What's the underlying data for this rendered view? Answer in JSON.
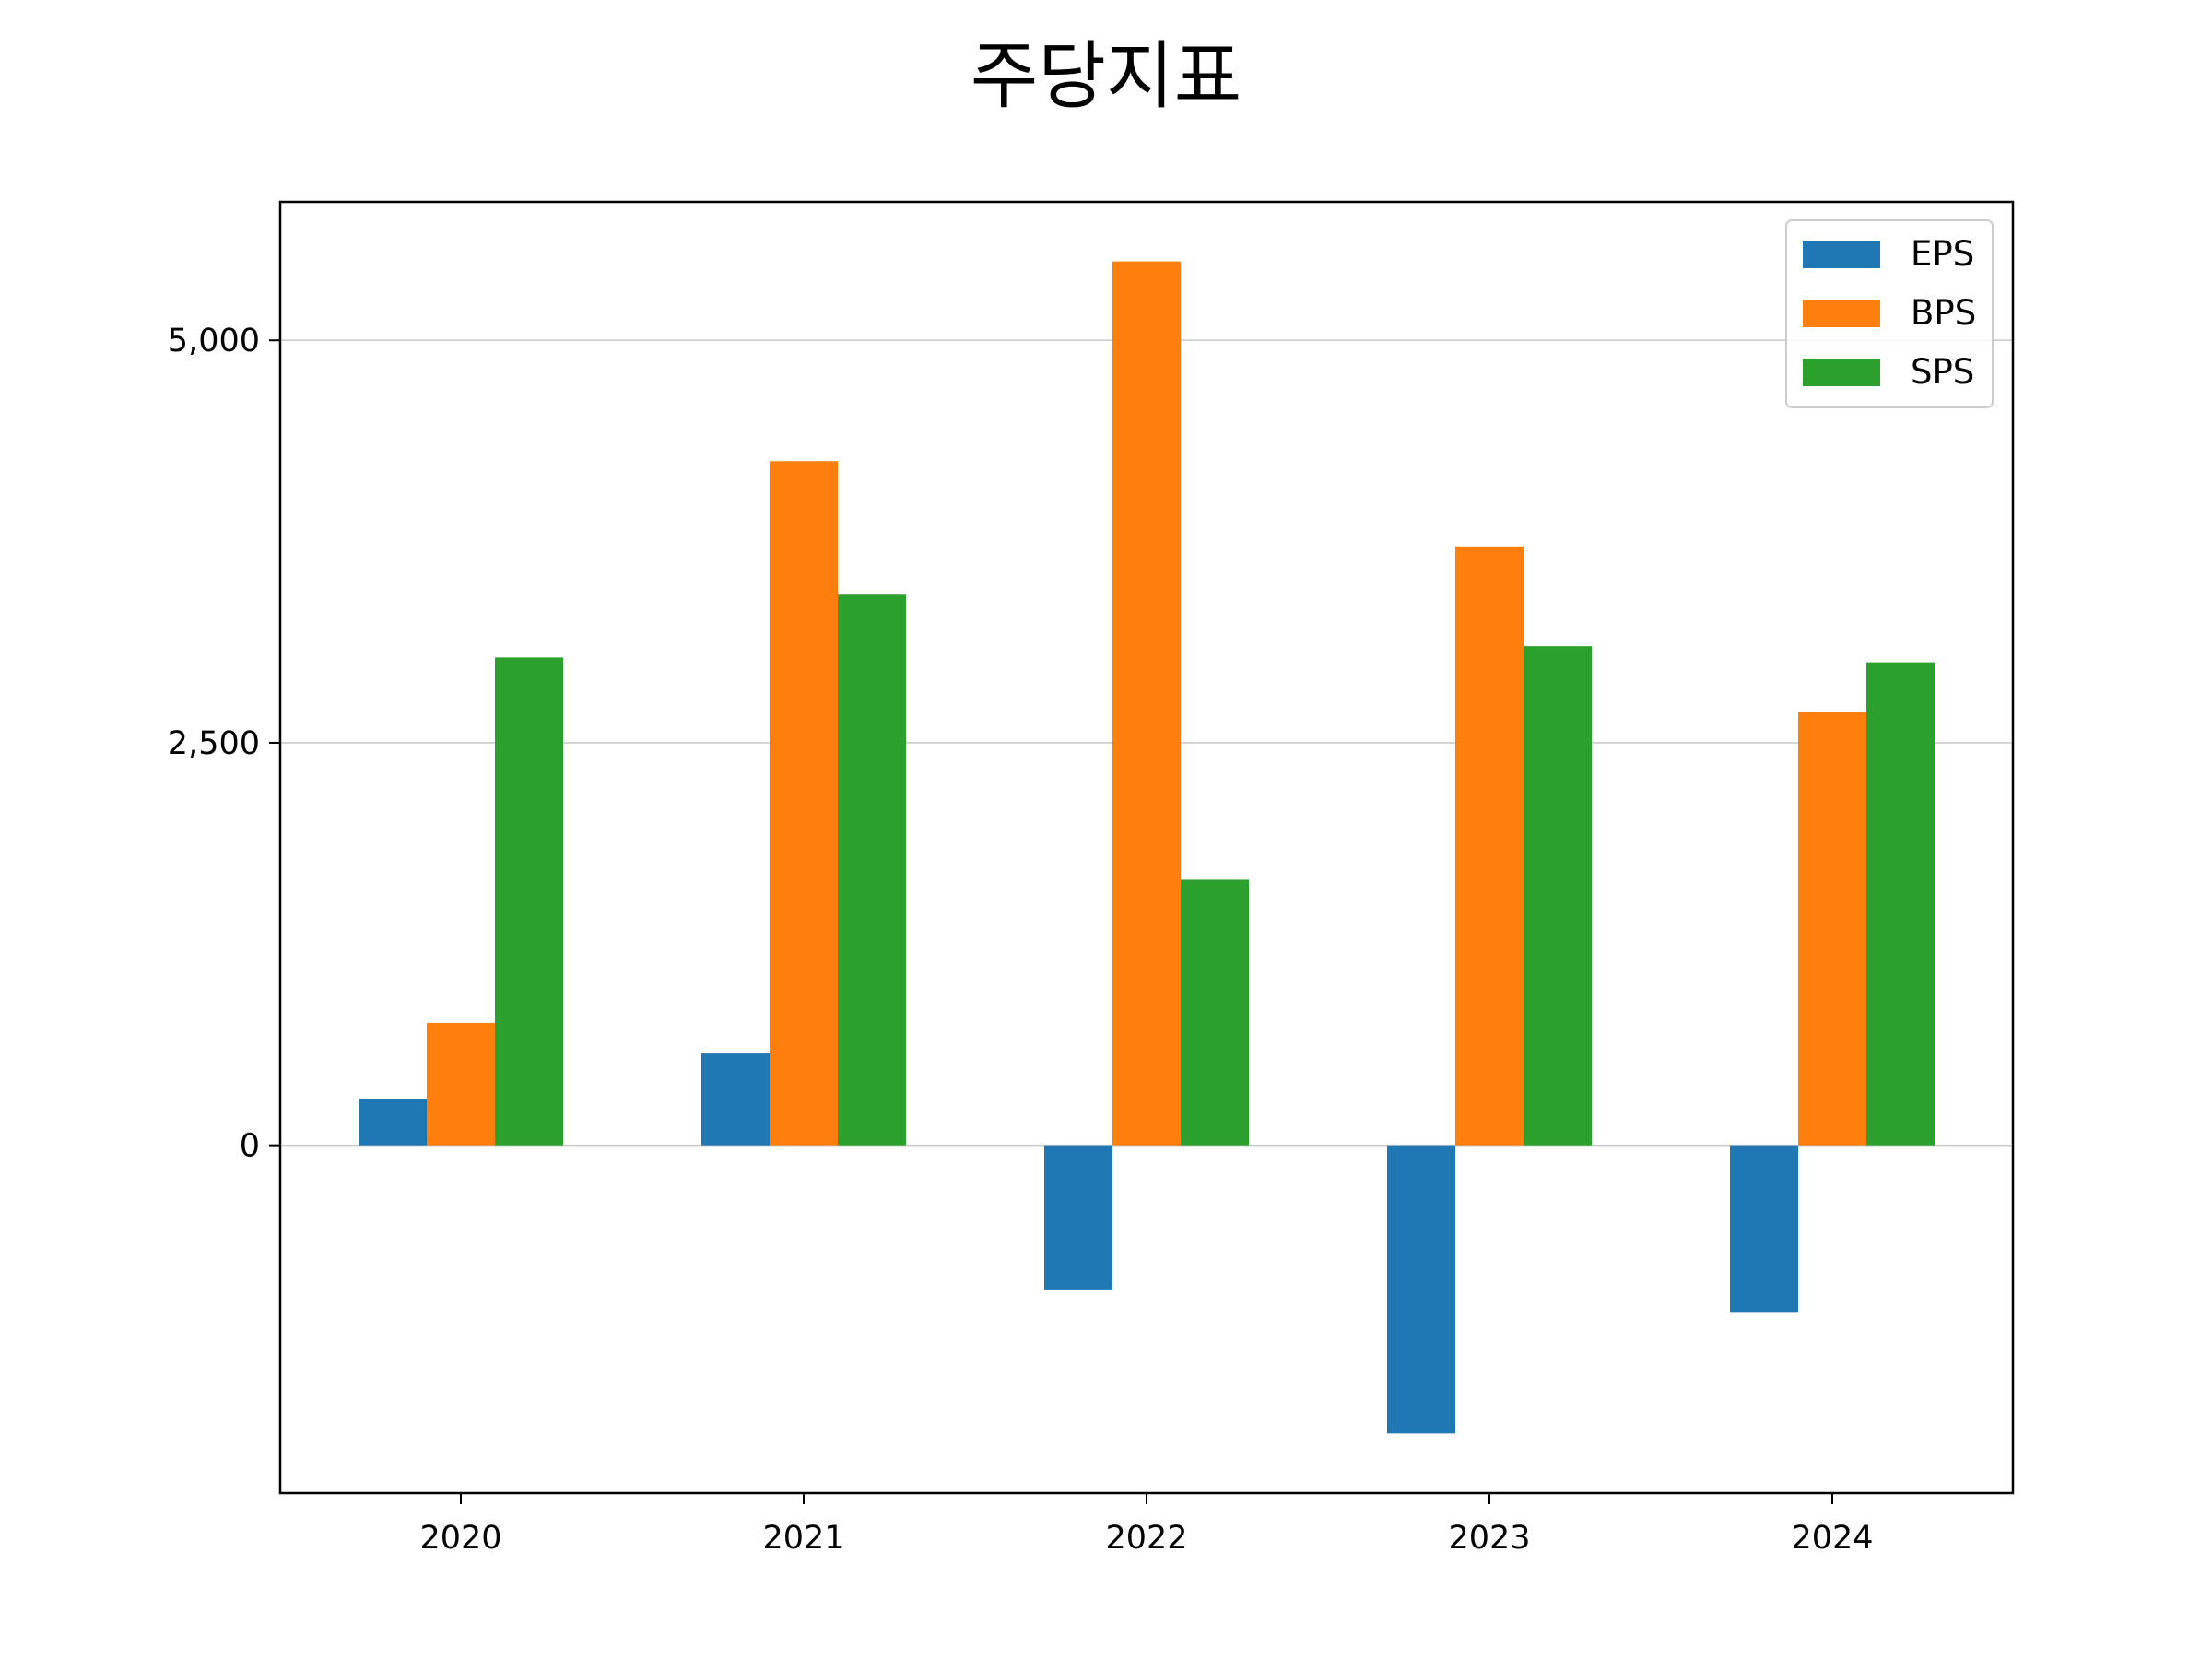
{
  "chart_data": {
    "type": "bar",
    "title": "주당지표",
    "xlabel": "",
    "ylabel": "",
    "categories": [
      "2020",
      "2021",
      "2022",
      "2023",
      "2024"
    ],
    "series": [
      {
        "name": "EPS",
        "color": "#1f77b4",
        "values": [
          290,
          570,
          -900,
          -1790,
          -1040
        ]
      },
      {
        "name": "BPS",
        "color": "#ff7f0e",
        "values": [
          760,
          4250,
          5490,
          3720,
          2690
        ]
      },
      {
        "name": "SPS",
        "color": "#2ca02c",
        "values": [
          3030,
          3420,
          1650,
          3100,
          3000
        ]
      }
    ],
    "ylim": [
      -2160,
      5860
    ],
    "yticks": [
      0,
      2500,
      5000
    ],
    "ytick_labels": [
      "0",
      "2,500",
      "5,000"
    ],
    "grid": "horizontal",
    "legend": "top-right"
  }
}
